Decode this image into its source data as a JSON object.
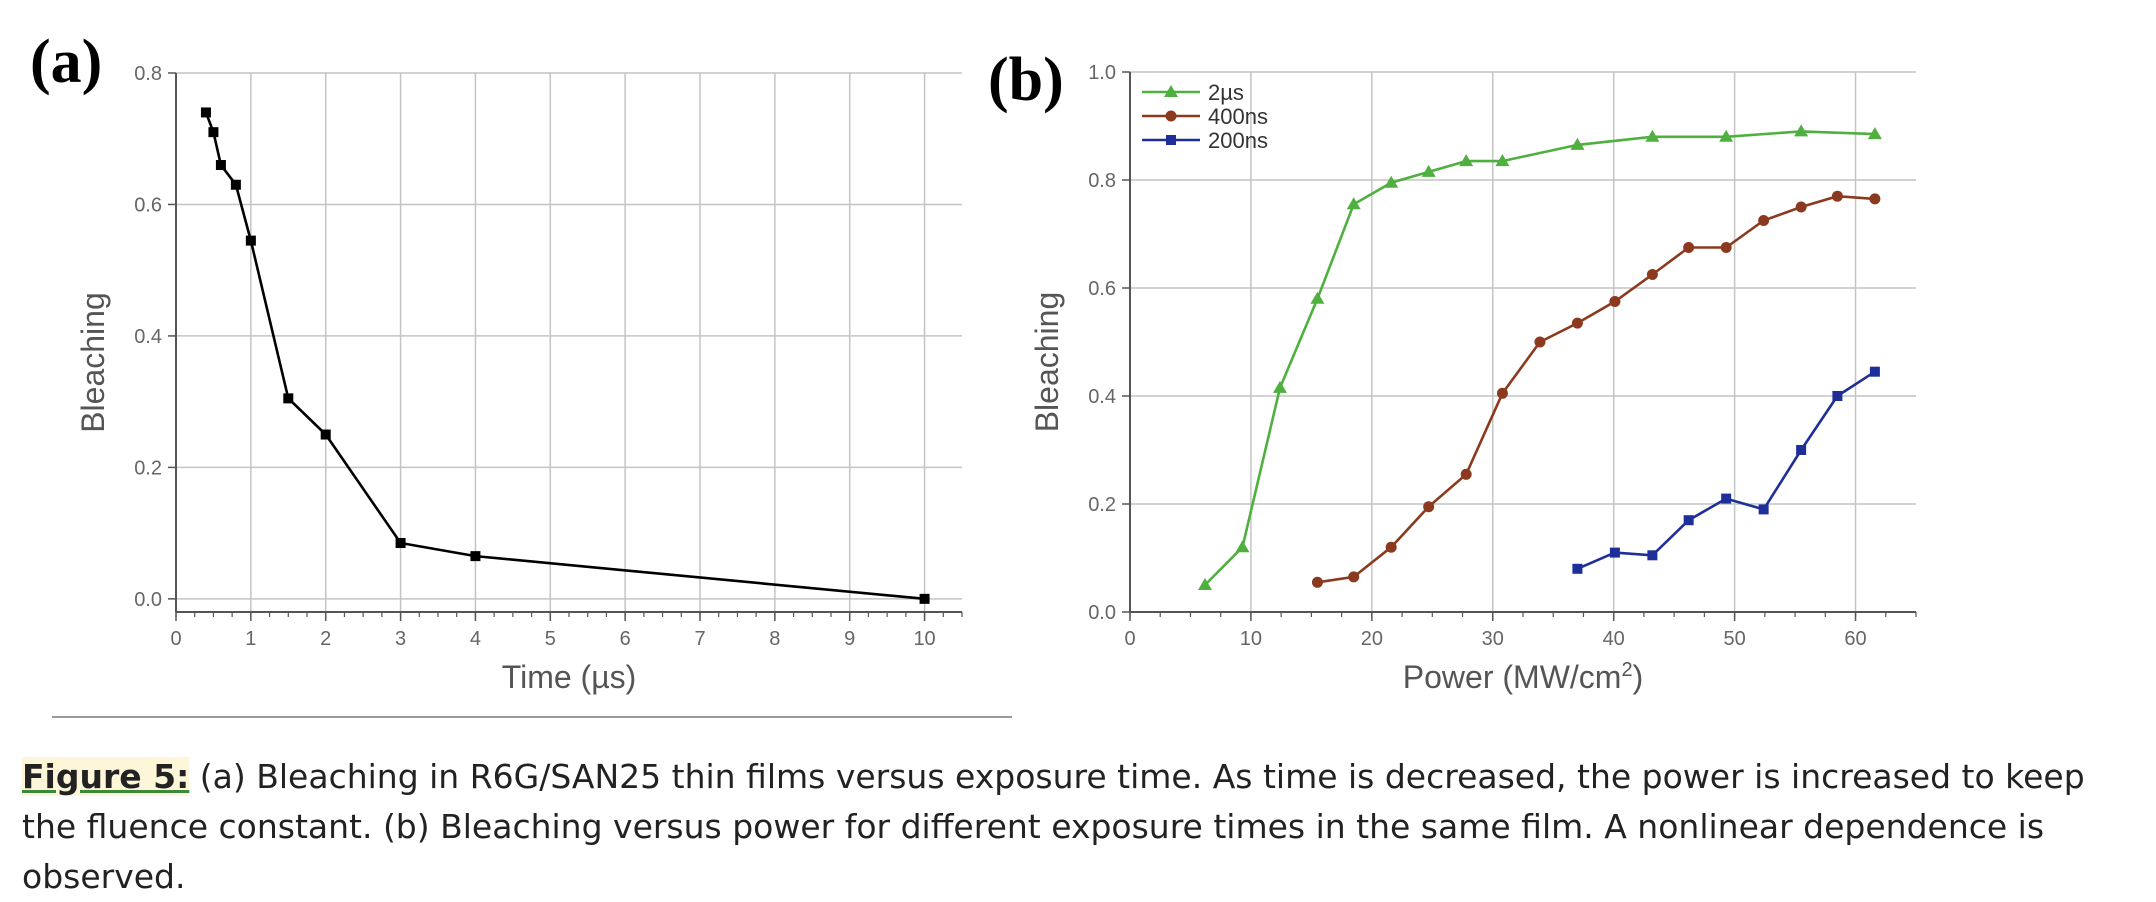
{
  "figure": {
    "panel_a_label": "(a)",
    "panel_b_label": "(b)",
    "caption_label": "Figure 5:",
    "caption_text": " (a) Bleaching in R6G/SAN25 thin films versus exposure time. As time is decreased, the power is increased to keep the fluence constant. (b) Bleaching versus power for different exposure times in the same film. A nonlinear dependence is observed."
  },
  "chart_data": [
    {
      "type": "line",
      "panel": "(a)",
      "xlabel": "Time (µs)",
      "ylabel": "Bleaching",
      "xlim": [
        0,
        10.5
      ],
      "ylim": [
        -0.02,
        0.8
      ],
      "xticks": [
        0,
        1,
        2,
        3,
        4,
        5,
        6,
        7,
        8,
        9,
        10
      ],
      "yticks": [
        0.0,
        0.2,
        0.4,
        0.6,
        0.8
      ],
      "ytick_labels": [
        "0.0",
        "0.2",
        "0.4",
        "0.6",
        "0.8"
      ],
      "grid": true,
      "series": [
        {
          "color": "#000000",
          "marker": "square",
          "x": [
            0.4,
            0.5,
            0.6,
            0.8,
            1.0,
            1.5,
            2.0,
            3.0,
            4.0,
            10.0
          ],
          "y": [
            0.74,
            0.71,
            0.66,
            0.63,
            0.545,
            0.305,
            0.25,
            0.085,
            0.065,
            0.0
          ]
        }
      ]
    },
    {
      "type": "line",
      "panel": "(b)",
      "xlabel": "Power (MW/cm",
      "xlabel_sup": "2",
      "xlabel_end": ")",
      "ylabel": "Bleaching",
      "xlim": [
        0,
        65
      ],
      "ylim": [
        0,
        1.0
      ],
      "xticks": [
        0,
        10,
        20,
        30,
        40,
        50,
        60
      ],
      "yticks": [
        0.0,
        0.2,
        0.4,
        0.6,
        0.8,
        1.0
      ],
      "ytick_labels": [
        "0.0",
        "0.2",
        "0.4",
        "0.6",
        "0.8",
        "1.0"
      ],
      "grid": true,
      "legend_position": "top-left",
      "series": [
        {
          "name": "2µs",
          "color": "#4fb040",
          "marker": "triangle",
          "x": [
            6.2,
            9.3,
            12.4,
            15.5,
            18.5,
            21.6,
            24.7,
            27.8,
            30.8,
            37.0,
            43.2,
            49.3,
            55.5,
            61.6
          ],
          "y": [
            0.05,
            0.12,
            0.415,
            0.58,
            0.755,
            0.795,
            0.815,
            0.835,
            0.835,
            0.865,
            0.88,
            0.88,
            0.89,
            0.885
          ]
        },
        {
          "name": "400ns",
          "color": "#8b3a1f",
          "marker": "circle",
          "x": [
            15.5,
            18.5,
            21.6,
            24.7,
            27.8,
            30.8,
            33.9,
            37.0,
            40.1,
            43.2,
            46.2,
            49.3,
            52.4,
            55.5,
            58.5,
            61.6
          ],
          "y": [
            0.055,
            0.065,
            0.12,
            0.195,
            0.255,
            0.405,
            0.5,
            0.535,
            0.575,
            0.625,
            0.675,
            0.675,
            0.725,
            0.75,
            0.77,
            0.765
          ]
        },
        {
          "name": "200ns",
          "color": "#1f2f99",
          "marker": "square",
          "x": [
            37.0,
            40.1,
            43.2,
            46.2,
            49.3,
            52.4,
            55.5,
            58.5,
            61.6
          ],
          "y": [
            0.08,
            0.11,
            0.105,
            0.17,
            0.21,
            0.19,
            0.3,
            0.4,
            0.445
          ]
        }
      ]
    }
  ]
}
